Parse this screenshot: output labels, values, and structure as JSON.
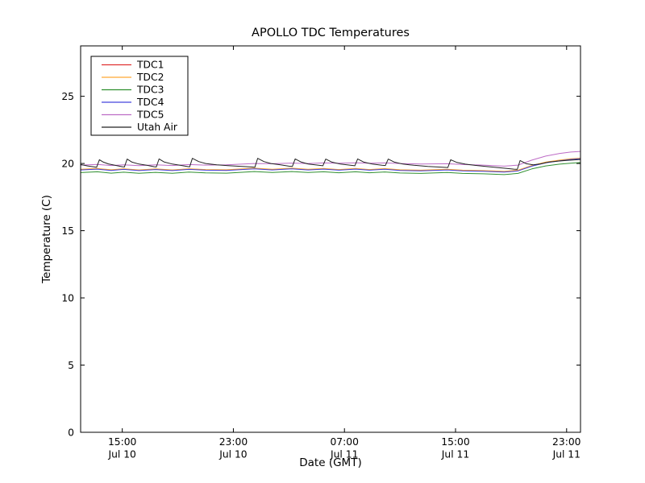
{
  "figure": {
    "background": "#ffffff",
    "axes_color": "#000000"
  },
  "chart_data": {
    "type": "line",
    "title": "APOLLO TDC Temperatures",
    "xlabel": "Date (GMT)",
    "ylabel": "Temperature (C)",
    "xlim": [
      0,
      36
    ],
    "ylim": [
      0,
      28.75
    ],
    "yticks": [
      0,
      5,
      10,
      15,
      20,
      25
    ],
    "xticks": [
      {
        "pos": 3,
        "time": "15:00",
        "date": "Jul 10"
      },
      {
        "pos": 11,
        "time": "23:00",
        "date": "Jul 10"
      },
      {
        "pos": 19,
        "time": "07:00",
        "date": "Jul 11"
      },
      {
        "pos": 27,
        "time": "15:00",
        "date": "Jul 11"
      },
      {
        "pos": 35,
        "time": "23:00",
        "date": "Jul 11"
      }
    ],
    "grid": false,
    "legend_position": "upper left",
    "series": [
      {
        "name": "TDC1",
        "color": "#e03030",
        "points": [
          [
            0,
            19.55
          ],
          [
            1.2,
            19.61
          ],
          [
            2.2,
            19.51
          ],
          [
            3.1,
            19.59
          ],
          [
            4.2,
            19.5
          ],
          [
            5.4,
            19.58
          ],
          [
            6.6,
            19.5
          ],
          [
            7.8,
            19.59
          ],
          [
            9,
            19.53
          ],
          [
            10.5,
            19.51
          ],
          [
            12.5,
            19.63
          ],
          [
            13.8,
            19.55
          ],
          [
            15.2,
            19.63
          ],
          [
            16.4,
            19.55
          ],
          [
            17.5,
            19.61
          ],
          [
            18.6,
            19.53
          ],
          [
            19.8,
            19.61
          ],
          [
            20.8,
            19.53
          ],
          [
            21.9,
            19.6
          ],
          [
            23,
            19.51
          ],
          [
            24.5,
            19.48
          ],
          [
            26.4,
            19.55
          ],
          [
            27.5,
            19.48
          ],
          [
            29,
            19.45
          ],
          [
            30.5,
            19.39
          ],
          [
            31.5,
            19.48
          ],
          [
            32.5,
            19.83
          ],
          [
            33.5,
            20.08
          ],
          [
            34.5,
            20.23
          ],
          [
            35.3,
            20.33
          ],
          [
            36,
            20.38
          ]
        ]
      },
      {
        "name": "TDC2",
        "color": "#ffa933",
        "points": [
          [
            0,
            19.57
          ],
          [
            1.2,
            19.63
          ],
          [
            2.2,
            19.53
          ],
          [
            3.1,
            19.61
          ],
          [
            4.2,
            19.52
          ],
          [
            5.4,
            19.6
          ],
          [
            6.6,
            19.52
          ],
          [
            7.8,
            19.61
          ],
          [
            9,
            19.55
          ],
          [
            10.5,
            19.53
          ],
          [
            12.5,
            19.65
          ],
          [
            13.8,
            19.57
          ],
          [
            15.2,
            19.65
          ],
          [
            16.4,
            19.57
          ],
          [
            17.5,
            19.63
          ],
          [
            18.6,
            19.55
          ],
          [
            19.8,
            19.63
          ],
          [
            20.8,
            19.55
          ],
          [
            21.9,
            19.62
          ],
          [
            23,
            19.53
          ],
          [
            24.5,
            19.5
          ],
          [
            26.4,
            19.57
          ],
          [
            27.5,
            19.5
          ],
          [
            29,
            19.47
          ],
          [
            30.5,
            19.41
          ],
          [
            31.5,
            19.5
          ],
          [
            32.5,
            19.85
          ],
          [
            33.5,
            20.1
          ],
          [
            34.5,
            20.25
          ],
          [
            35.3,
            20.35
          ],
          [
            36,
            20.4
          ]
        ]
      },
      {
        "name": "TDC3",
        "color": "#2f8f2f",
        "points": [
          [
            0,
            19.32
          ],
          [
            1.2,
            19.38
          ],
          [
            2.2,
            19.28
          ],
          [
            3.1,
            19.35
          ],
          [
            4.2,
            19.27
          ],
          [
            5.4,
            19.34
          ],
          [
            6.6,
            19.27
          ],
          [
            7.8,
            19.36
          ],
          [
            9,
            19.3
          ],
          [
            10.5,
            19.28
          ],
          [
            12.5,
            19.4
          ],
          [
            13.8,
            19.33
          ],
          [
            15.2,
            19.4
          ],
          [
            16.4,
            19.33
          ],
          [
            17.5,
            19.38
          ],
          [
            18.6,
            19.31
          ],
          [
            19.8,
            19.38
          ],
          [
            20.8,
            19.31
          ],
          [
            21.9,
            19.37
          ],
          [
            23,
            19.29
          ],
          [
            24.5,
            19.26
          ],
          [
            26.4,
            19.33
          ],
          [
            27.5,
            19.26
          ],
          [
            29,
            19.23
          ],
          [
            30.5,
            19.17
          ],
          [
            31.5,
            19.26
          ],
          [
            32.5,
            19.6
          ],
          [
            33.5,
            19.82
          ],
          [
            34.5,
            19.95
          ],
          [
            35.3,
            20.02
          ],
          [
            36,
            20.07
          ]
        ]
      },
      {
        "name": "TDC4",
        "color": "#4343dd",
        "points": [
          [
            0,
            19.52
          ],
          [
            1.2,
            19.58
          ],
          [
            2.2,
            19.48
          ],
          [
            3.1,
            19.56
          ],
          [
            4.2,
            19.47
          ],
          [
            5.4,
            19.55
          ],
          [
            6.6,
            19.47
          ],
          [
            7.8,
            19.56
          ],
          [
            9,
            19.5
          ],
          [
            10.5,
            19.48
          ],
          [
            12.5,
            19.6
          ],
          [
            13.8,
            19.52
          ],
          [
            15.2,
            19.6
          ],
          [
            16.4,
            19.52
          ],
          [
            17.5,
            19.58
          ],
          [
            18.6,
            19.5
          ],
          [
            19.8,
            19.58
          ],
          [
            20.8,
            19.5
          ],
          [
            21.9,
            19.57
          ],
          [
            23,
            19.48
          ],
          [
            24.5,
            19.45
          ],
          [
            26.4,
            19.52
          ],
          [
            27.5,
            19.45
          ],
          [
            29,
            19.42
          ],
          [
            30.5,
            19.36
          ],
          [
            31.5,
            19.45
          ],
          [
            32.5,
            19.8
          ],
          [
            33.5,
            20.05
          ],
          [
            34.5,
            20.2
          ],
          [
            35.3,
            20.3
          ],
          [
            36,
            20.36
          ]
        ]
      },
      {
        "name": "TDC5",
        "color": "#bd6cc6",
        "points": [
          [
            0,
            19.88
          ],
          [
            1.2,
            19.93
          ],
          [
            2.2,
            19.85
          ],
          [
            3.1,
            19.9
          ],
          [
            4.2,
            19.84
          ],
          [
            5.4,
            19.9
          ],
          [
            6.6,
            19.85
          ],
          [
            7.8,
            19.92
          ],
          [
            9,
            19.88
          ],
          [
            10.5,
            19.9
          ],
          [
            12.5,
            20.0
          ],
          [
            13.8,
            19.98
          ],
          [
            15.2,
            20.03
          ],
          [
            16.4,
            20.0
          ],
          [
            17.5,
            20.04
          ],
          [
            18.6,
            20.02
          ],
          [
            19.8,
            20.05
          ],
          [
            20.8,
            20.02
          ],
          [
            21.9,
            20.04
          ],
          [
            23,
            20.0
          ],
          [
            24.5,
            19.96
          ],
          [
            26.4,
            19.98
          ],
          [
            27.5,
            19.92
          ],
          [
            29,
            19.88
          ],
          [
            30.5,
            19.8
          ],
          [
            31.5,
            19.88
          ],
          [
            32.5,
            20.25
          ],
          [
            33.5,
            20.55
          ],
          [
            34.5,
            20.75
          ],
          [
            35.3,
            20.85
          ],
          [
            36,
            20.9
          ]
        ]
      },
      {
        "name": "Utah Air",
        "color": "#222222",
        "points": [
          [
            0,
            19.92
          ],
          [
            0.5,
            19.82
          ],
          [
            1,
            19.74
          ],
          [
            1.15,
            19.72
          ],
          [
            1.35,
            20.28
          ],
          [
            1.6,
            20.12
          ],
          [
            2,
            19.97
          ],
          [
            2.5,
            19.86
          ],
          [
            3,
            19.76
          ],
          [
            3.15,
            19.74
          ],
          [
            3.35,
            20.33
          ],
          [
            3.7,
            20.1
          ],
          [
            4.2,
            19.96
          ],
          [
            4.8,
            19.86
          ],
          [
            5.3,
            19.76
          ],
          [
            5.45,
            19.74
          ],
          [
            5.65,
            20.34
          ],
          [
            6,
            20.12
          ],
          [
            6.6,
            19.96
          ],
          [
            7.2,
            19.86
          ],
          [
            7.7,
            19.77
          ],
          [
            7.85,
            19.75
          ],
          [
            8.05,
            20.38
          ],
          [
            8.5,
            20.14
          ],
          [
            9,
            20
          ],
          [
            9.8,
            19.9
          ],
          [
            10.6,
            19.84
          ],
          [
            11.5,
            19.79
          ],
          [
            12.3,
            19.74
          ],
          [
            12.55,
            19.72
          ],
          [
            12.75,
            20.38
          ],
          [
            13.2,
            20.14
          ],
          [
            13.7,
            20
          ],
          [
            14.4,
            19.9
          ],
          [
            15,
            19.8
          ],
          [
            15.25,
            19.78
          ],
          [
            15.45,
            20.34
          ],
          [
            15.9,
            20.1
          ],
          [
            16.4,
            19.96
          ],
          [
            17.2,
            19.86
          ],
          [
            17.45,
            19.83
          ],
          [
            17.65,
            20.33
          ],
          [
            18.1,
            20.1
          ],
          [
            18.7,
            19.96
          ],
          [
            19.5,
            19.86
          ],
          [
            19.75,
            19.83
          ],
          [
            19.95,
            20.34
          ],
          [
            20.4,
            20.1
          ],
          [
            21,
            19.96
          ],
          [
            21.7,
            19.87
          ],
          [
            21.95,
            19.85
          ],
          [
            22.15,
            20.33
          ],
          [
            22.6,
            20.1
          ],
          [
            23.2,
            19.96
          ],
          [
            24,
            19.87
          ],
          [
            25,
            19.78
          ],
          [
            26.2,
            19.71
          ],
          [
            26.45,
            19.7
          ],
          [
            26.65,
            20.28
          ],
          [
            27.1,
            20.08
          ],
          [
            27.7,
            19.95
          ],
          [
            28.4,
            19.86
          ],
          [
            29.4,
            19.76
          ],
          [
            30.4,
            19.66
          ],
          [
            31.2,
            19.58
          ],
          [
            31.45,
            19.56
          ],
          [
            31.65,
            20.22
          ],
          [
            32.1,
            19.98
          ],
          [
            32.6,
            19.9
          ],
          [
            33.1,
            19.97
          ],
          [
            33.7,
            20.1
          ],
          [
            34.4,
            20.18
          ],
          [
            35.1,
            20.24
          ],
          [
            36,
            20.3
          ]
        ]
      }
    ]
  }
}
